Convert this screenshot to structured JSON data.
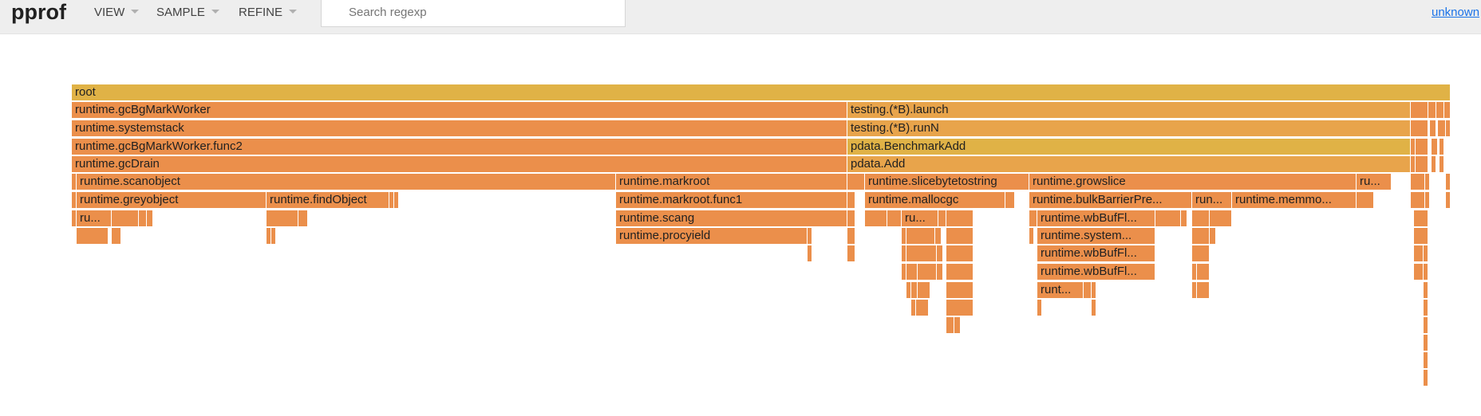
{
  "header": {
    "title": "pprof",
    "menus": [
      {
        "label": "VIEW"
      },
      {
        "label": "SAMPLE"
      },
      {
        "label": "REFINE"
      }
    ],
    "search": {
      "placeholder": "Search regexp",
      "value": ""
    },
    "user_link": "unknown"
  },
  "colors": {
    "root": "#e0b246",
    "orange": "#eb8f4b",
    "light_orange": "#e8a44b",
    "header_bg": "#eeeeee",
    "link": "#1a73e8"
  },
  "flame_frames": [
    {
      "label": "root",
      "color": "#e0b246"
    },
    {
      "label": "runtime.gcBgMarkWorker",
      "color": "#eb8f4b"
    },
    {
      "label": "testing.(*B).launch",
      "color": "#e8a44b"
    },
    {
      "label": "runtime.systemstack",
      "color": "#eb8f4b"
    },
    {
      "label": "testing.(*B).runN",
      "color": "#e8a44b"
    },
    {
      "label": "runtime.gcBgMarkWorker.func2",
      "color": "#eb8f4b"
    },
    {
      "label": "pdata.BenchmarkAdd",
      "color": "#e0b246"
    },
    {
      "label": "runtime.gcDrain",
      "color": "#eb8f4b"
    },
    {
      "label": "pdata.Add",
      "color": "#e8a44b"
    },
    {
      "label": "runtime.scanobject",
      "color": "#eb8f4b"
    },
    {
      "label": "runtime.markroot",
      "color": "#eb8f4b"
    },
    {
      "label": "runtime.slicebytetostring",
      "color": "#eb8f4b"
    },
    {
      "label": "runtime.growslice",
      "color": "#eb8f4b"
    },
    {
      "label": "ru...",
      "color": "#eb8f4b"
    },
    {
      "label": "runtime.greyobject",
      "color": "#eb8f4b"
    },
    {
      "label": "runtime.findObject",
      "color": "#eb8f4b"
    },
    {
      "label": "runtime.markroot.func1",
      "color": "#eb8f4b"
    },
    {
      "label": "runtime.mallocgc",
      "color": "#eb8f4b"
    },
    {
      "label": "runtime.bulkBarrierPre...",
      "color": "#eb8f4b"
    },
    {
      "label": "run...",
      "color": "#eb8f4b"
    },
    {
      "label": "runtime.memmo...",
      "color": "#eb8f4b"
    },
    {
      "label": "ru...",
      "color": "#eb8f4b"
    },
    {
      "label": "runtime.scang",
      "color": "#eb8f4b"
    },
    {
      "label": "ru...",
      "color": "#eb8f4b"
    },
    {
      "label": "runtime.wbBufFl...",
      "color": "#eb8f4b"
    },
    {
      "label": "runtime.procyield",
      "color": "#eb8f4b"
    },
    {
      "label": "runtime.system...",
      "color": "#eb8f4b"
    },
    {
      "label": "runtime.wbBufFl...",
      "color": "#eb8f4b"
    },
    {
      "label": "runtime.wbBufFl...",
      "color": "#eb8f4b"
    },
    {
      "label": "runt...",
      "color": "#eb8f4b"
    }
  ]
}
